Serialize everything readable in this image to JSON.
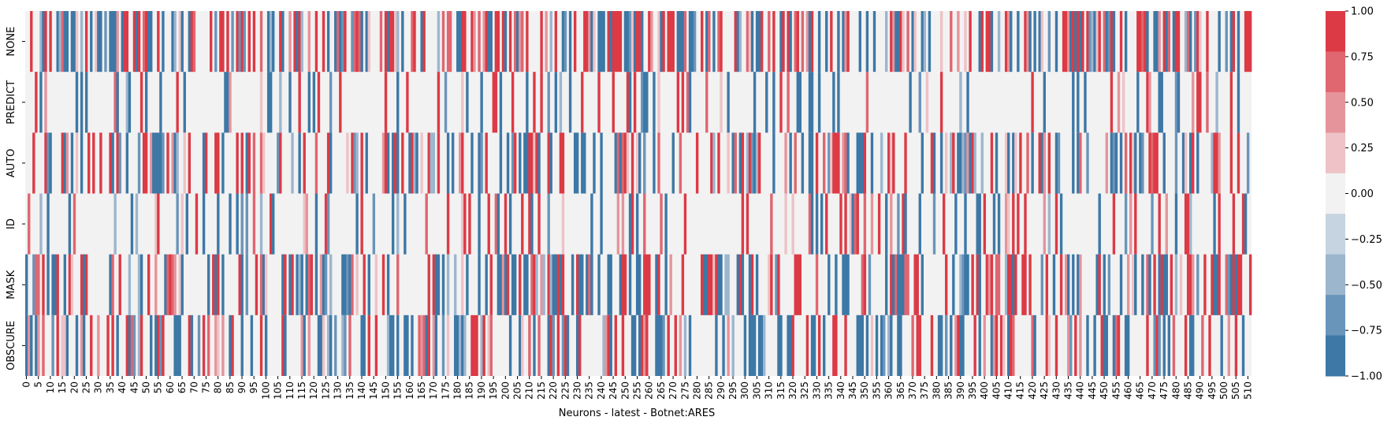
{
  "chart_data": {
    "type": "heatmap",
    "title": "",
    "xlabel": "Neurons - latest - Botnet:ARES",
    "ylabel": "",
    "rows": [
      "NONE",
      "PREDICT",
      "AUTO",
      "ID",
      "MASK",
      "OBSCURE"
    ],
    "x_range": [
      0,
      511
    ],
    "x_tick_step": 5,
    "x_tick_labels": [
      "0",
      "5",
      "10",
      "15",
      "20",
      "25",
      "30",
      "35",
      "40",
      "45",
      "50",
      "55",
      "60",
      "65",
      "70",
      "75",
      "80",
      "85",
      "90",
      "95",
      "100",
      "105",
      "110",
      "115",
      "120",
      "125",
      "130",
      "135",
      "140",
      "145",
      "150",
      "155",
      "160",
      "165",
      "170",
      "175",
      "180",
      "185",
      "190",
      "195",
      "200",
      "205",
      "210",
      "215",
      "220",
      "225",
      "230",
      "235",
      "240",
      "245",
      "250",
      "255",
      "260",
      "265",
      "270",
      "275",
      "280",
      "285",
      "290",
      "295",
      "300",
      "305",
      "310",
      "315",
      "320",
      "325",
      "330",
      "335",
      "340",
      "345",
      "350",
      "355",
      "360",
      "365",
      "370",
      "375",
      "380",
      "385",
      "390",
      "395",
      "400",
      "405",
      "410",
      "415",
      "420",
      "425",
      "430",
      "435",
      "440",
      "445",
      "450",
      "455",
      "460",
      "465",
      "470",
      "475",
      "480",
      "485",
      "490",
      "495",
      "500",
      "505",
      "510"
    ],
    "value_range": [
      -1.0,
      1.0
    ],
    "colorbar": {
      "tick_labels": [
        "1.00",
        "0.75",
        "0.50",
        "0.25",
        "0.00",
        "−0.25",
        "−0.50",
        "−0.75",
        "−1.00"
      ],
      "levels": [
        -0.875,
        -0.625,
        -0.375,
        -0.125,
        0.0,
        0.125,
        0.375,
        0.625,
        0.875
      ],
      "colors": [
        "#3d78a6",
        "#6a95ba",
        "#9cb6ce",
        "#c6d4e1",
        "#f2f2f2",
        "#eec2c6",
        "#e6949b",
        "#e06670",
        "#dc3a45"
      ]
    },
    "cell_values": {
      "note_on_density": "per-row share of neurons with non-zero value (visual estimate)",
      "NONE": {
        "nonzero_fraction": 0.55,
        "positive_fraction": 0.55
      },
      "PREDICT": {
        "nonzero_fraction": 0.22,
        "positive_fraction": 0.5
      },
      "AUTO": {
        "nonzero_fraction": 0.45,
        "positive_fraction": 0.55
      },
      "ID": {
        "nonzero_fraction": 0.25,
        "positive_fraction": 0.55
      },
      "MASK": {
        "nonzero_fraction": 0.45,
        "positive_fraction": 0.5
      },
      "OBSCURE": {
        "nonzero_fraction": 0.42,
        "positive_fraction": 0.5
      }
    }
  }
}
